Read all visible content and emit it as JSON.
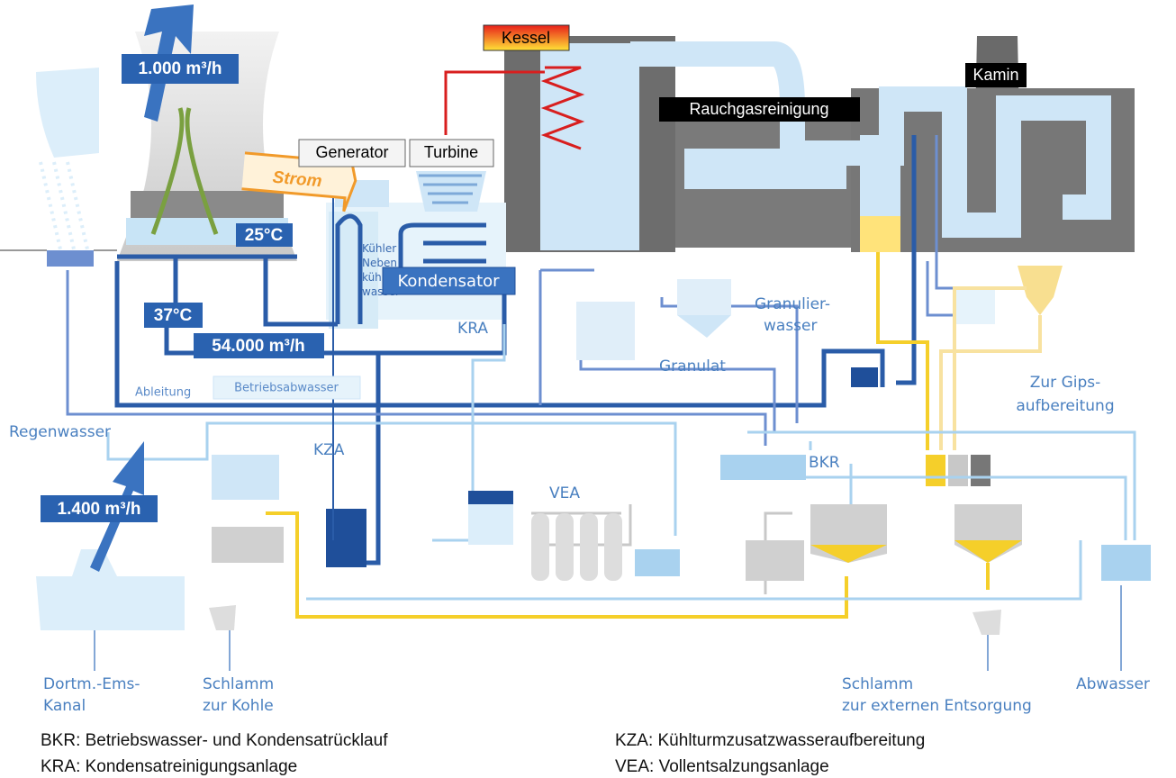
{
  "header": {
    "tower_flow": "1.000 m³/h",
    "boiler": "Kessel",
    "chimney": "Kamin",
    "flue_gas_cleaning": "Rauchgasreinigung",
    "generator": "Generator",
    "turbine": "Turbine",
    "power": "Strom"
  },
  "cooling": {
    "temp_cold": "25°C",
    "temp_warm": "37°C",
    "flow": "54.000 m³/h",
    "aux_cooler": [
      "Kühler",
      "Neben",
      "kühl-",
      "wasser"
    ],
    "condenser": "Kondensator",
    "kra": "KRA"
  },
  "process": {
    "granulation_water": [
      "Granulier-",
      "wasser"
    ],
    "granulate": "Granulat",
    "gypsum": [
      "Zur Gips-",
      "aufbereitung"
    ],
    "discharge": "Ableitung",
    "process_waste_water": "Betriebsabwasser",
    "rain_water": "Regenwasser",
    "kza": "KZA",
    "vea": "VEA",
    "bkr": "BKR",
    "intake_flow": "1.400 m³/h"
  },
  "outputs": {
    "canal": [
      "Dortm.-Ems-",
      "Kanal"
    ],
    "sludge_coal": [
      "Schlamm",
      "zur Kohle"
    ],
    "sludge_external": [
      "Schlamm",
      "zur externen Entsorgung"
    ],
    "waste_water": "Abwasser"
  },
  "legend": [
    "BKR: Betriebswasser- und Kondensatrücklauf",
    "KRA: Kondensatreinigungsanlage",
    "KZA: Kühlturmzusatzwasseraufbereitung",
    "VEA: Vollentsalzungsanlage"
  ]
}
